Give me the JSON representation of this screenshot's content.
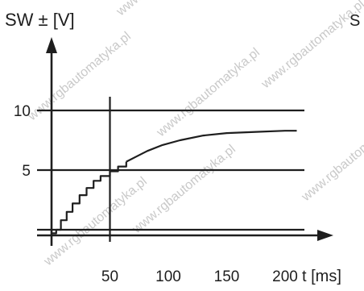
{
  "watermark": "www.rgbautomatyka.pl",
  "chart_data": {
    "type": "line",
    "ylabel": "SW ± [V]",
    "xlabel": "t [ms]",
    "corner_label": "S",
    "xlim": [
      0,
      220
    ],
    "ylim": [
      -1.5,
      13.5
    ],
    "x_ticks": [
      50,
      100,
      150,
      200
    ],
    "y_ticks": [
      5,
      10
    ],
    "grid_y": [
      0,
      5,
      10
    ],
    "grid_x": [
      50
    ],
    "series": [
      {
        "step": true,
        "points": [
          [
            0,
            -0.3
          ],
          [
            4,
            -0.3
          ],
          [
            4,
            0
          ],
          [
            8,
            0
          ],
          [
            8,
            0.8
          ],
          [
            13,
            0.8
          ],
          [
            13,
            1.5
          ],
          [
            18,
            1.5
          ],
          [
            18,
            2.2
          ],
          [
            24,
            2.2
          ],
          [
            24,
            2.9
          ],
          [
            30,
            2.9
          ],
          [
            30,
            3.5
          ],
          [
            36,
            3.5
          ],
          [
            36,
            4.1
          ],
          [
            42,
            4.1
          ],
          [
            42,
            4.5
          ],
          [
            50,
            4.5
          ],
          [
            50,
            4.9
          ],
          [
            57,
            4.9
          ],
          [
            57,
            5.3
          ],
          [
            64,
            5.3
          ],
          [
            64,
            5.7
          ]
        ]
      },
      {
        "step": false,
        "points": [
          [
            64,
            5.7
          ],
          [
            72,
            6.1
          ],
          [
            82,
            6.6
          ],
          [
            95,
            7.1
          ],
          [
            110,
            7.5
          ],
          [
            130,
            7.9
          ],
          [
            150,
            8.1
          ],
          [
            175,
            8.2
          ],
          [
            200,
            8.3
          ],
          [
            210,
            8.3
          ]
        ]
      }
    ]
  }
}
